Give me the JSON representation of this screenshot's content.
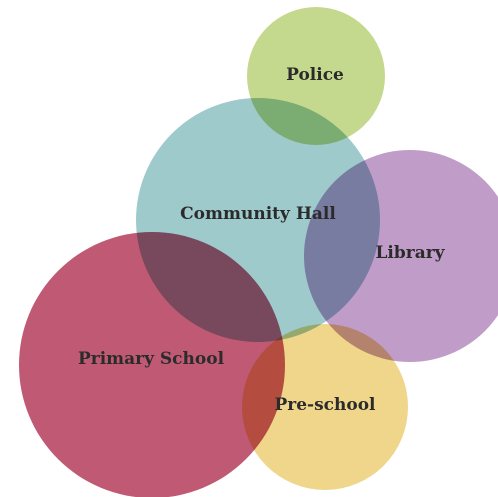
{
  "diagram": {
    "bubbles": [
      {
        "id": "primary-school",
        "label": "Primary School",
        "color": "#c05a74"
      },
      {
        "id": "community-hall",
        "label": "Community Hall",
        "color": "#9fcacc"
      },
      {
        "id": "library",
        "label": "Library",
        "color": "#c09cc9"
      },
      {
        "id": "police",
        "label": "Police",
        "color": "#c5d98e"
      },
      {
        "id": "pre-school",
        "label": "Pre-school",
        "color": "#efd68a"
      }
    ]
  }
}
